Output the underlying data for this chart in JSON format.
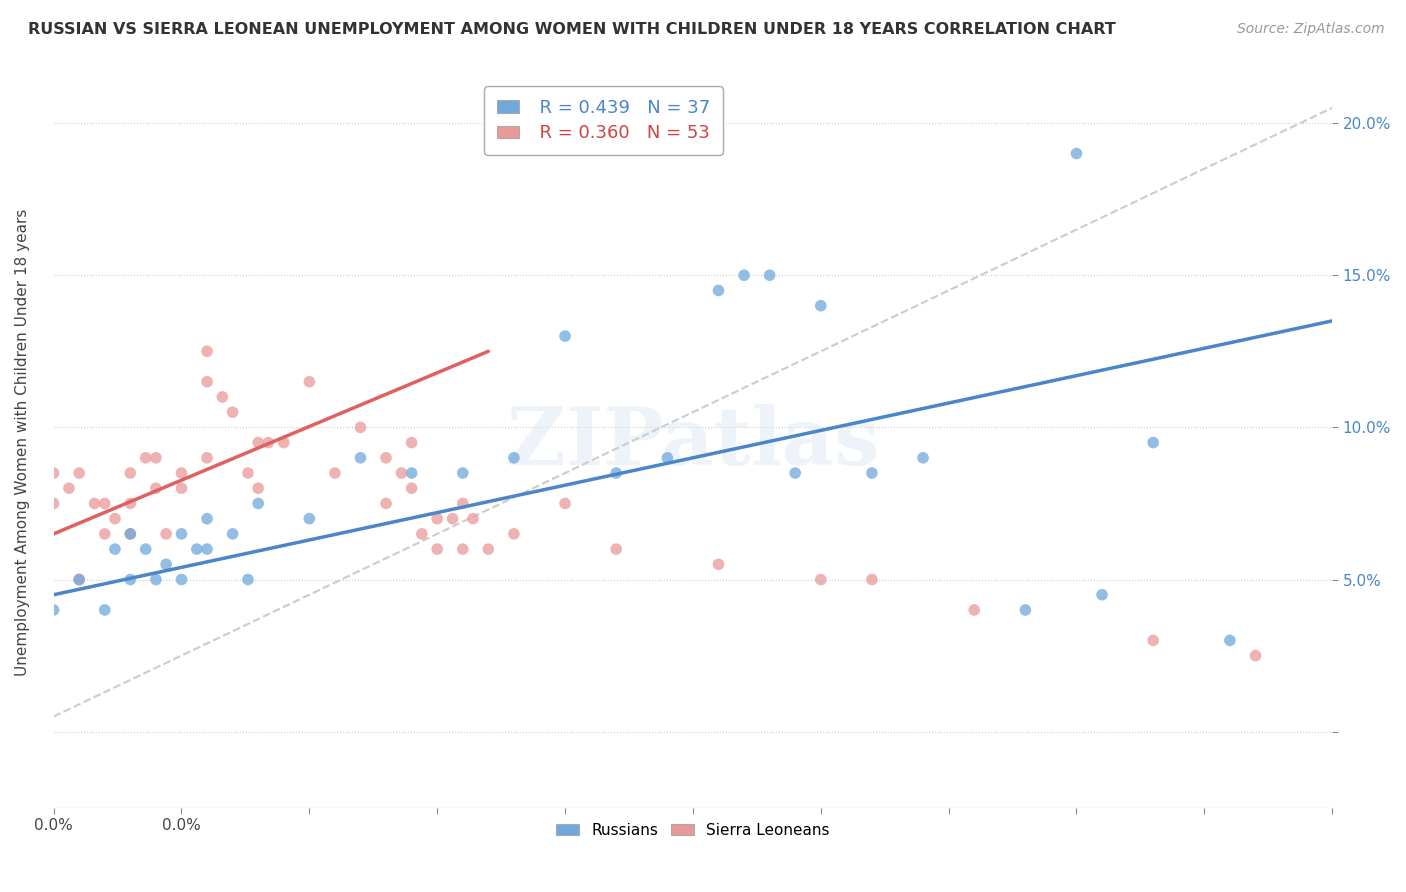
{
  "title": "RUSSIAN VS SIERRA LEONEAN UNEMPLOYMENT AMONG WOMEN WITH CHILDREN UNDER 18 YEARS CORRELATION CHART",
  "source": "Source: ZipAtlas.com",
  "ylabel": "Unemployment Among Women with Children Under 18 years",
  "xlim": [
    0.0,
    0.25
  ],
  "ylim": [
    -0.025,
    0.215
  ],
  "xticks": [
    0.0,
    0.025,
    0.05,
    0.075,
    0.1,
    0.125,
    0.15,
    0.175,
    0.2,
    0.225,
    0.25
  ],
  "xtick_labels_show": {
    "0.0": "0.0%"
  },
  "yticks": [
    0.0,
    0.05,
    0.1,
    0.15,
    0.2
  ],
  "ytick_labels_right": [
    "",
    "5.0%",
    "10.0%",
    "15.0%",
    "20.0%"
  ],
  "legend_r_n": [
    {
      "label": "R = 0.439",
      "n": "N = 37",
      "color": "#6fa8dc"
    },
    {
      "label": "R = 0.360",
      "n": "N = 53",
      "color": "#ea9999"
    }
  ],
  "blue_color": "#6fa8dc",
  "pink_color": "#ea9999",
  "russians_x": [
    0.0,
    0.005,
    0.01,
    0.012,
    0.015,
    0.015,
    0.018,
    0.02,
    0.022,
    0.025,
    0.025,
    0.028,
    0.03,
    0.03,
    0.035,
    0.038,
    0.04,
    0.05,
    0.06,
    0.07,
    0.08,
    0.09,
    0.1,
    0.11,
    0.12,
    0.13,
    0.135,
    0.14,
    0.145,
    0.15,
    0.16,
    0.17,
    0.19,
    0.2,
    0.205,
    0.215,
    0.23
  ],
  "russians_y": [
    0.04,
    0.05,
    0.04,
    0.06,
    0.05,
    0.065,
    0.06,
    0.05,
    0.055,
    0.05,
    0.065,
    0.06,
    0.06,
    0.07,
    0.065,
    0.05,
    0.075,
    0.07,
    0.09,
    0.085,
    0.085,
    0.09,
    0.13,
    0.085,
    0.09,
    0.145,
    0.15,
    0.15,
    0.085,
    0.14,
    0.085,
    0.09,
    0.04,
    0.19,
    0.045,
    0.095,
    0.03
  ],
  "sierra_x": [
    0.0,
    0.0,
    0.003,
    0.005,
    0.005,
    0.008,
    0.01,
    0.01,
    0.012,
    0.015,
    0.015,
    0.015,
    0.018,
    0.02,
    0.02,
    0.022,
    0.025,
    0.025,
    0.03,
    0.03,
    0.03,
    0.033,
    0.035,
    0.038,
    0.04,
    0.04,
    0.042,
    0.045,
    0.05,
    0.055,
    0.06,
    0.065,
    0.065,
    0.068,
    0.07,
    0.07,
    0.072,
    0.075,
    0.075,
    0.078,
    0.08,
    0.08,
    0.082,
    0.085,
    0.09,
    0.1,
    0.11,
    0.13,
    0.15,
    0.16,
    0.18,
    0.215,
    0.235
  ],
  "sierra_y": [
    0.075,
    0.085,
    0.08,
    0.085,
    0.05,
    0.075,
    0.075,
    0.065,
    0.07,
    0.085,
    0.075,
    0.065,
    0.09,
    0.09,
    0.08,
    0.065,
    0.085,
    0.08,
    0.125,
    0.115,
    0.09,
    0.11,
    0.105,
    0.085,
    0.095,
    0.08,
    0.095,
    0.095,
    0.115,
    0.085,
    0.1,
    0.09,
    0.075,
    0.085,
    0.095,
    0.08,
    0.065,
    0.07,
    0.06,
    0.07,
    0.075,
    0.06,
    0.07,
    0.06,
    0.065,
    0.075,
    0.06,
    0.055,
    0.05,
    0.05,
    0.04,
    0.03,
    0.025
  ],
  "blue_line_x": [
    0.0,
    0.25
  ],
  "blue_line_y": [
    0.045,
    0.135
  ],
  "pink_line_x": [
    0.0,
    0.085
  ],
  "pink_line_y": [
    0.065,
    0.125
  ],
  "grey_line_x": [
    0.0,
    0.25
  ],
  "grey_line_y": [
    0.005,
    0.205
  ]
}
